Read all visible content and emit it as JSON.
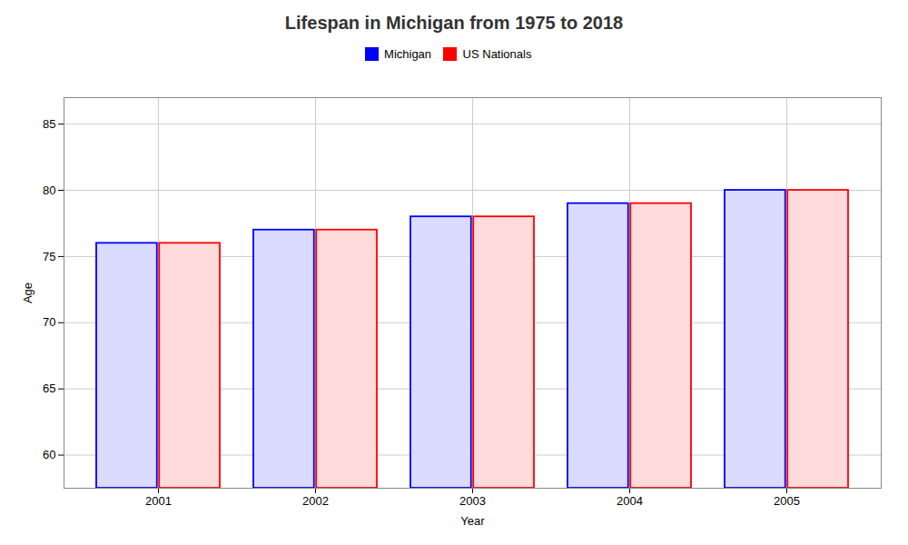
{
  "chart_data": {
    "type": "bar",
    "title": "Lifespan in Michigan from 1975 to 2018",
    "xlabel": "Year",
    "ylabel": "Age",
    "categories": [
      "2001",
      "2002",
      "2003",
      "2004",
      "2005"
    ],
    "series": [
      {
        "name": "Michigan",
        "color": "#0000ff",
        "values": [
          76.0,
          77.0,
          78.0,
          79.0,
          80.0
        ]
      },
      {
        "name": "US Nationals",
        "color": "#ff0000",
        "values": [
          76.0,
          77.0,
          78.0,
          79.0,
          80.0
        ]
      }
    ],
    "ylim": [
      57.5,
      87.0
    ],
    "yticks": [
      60,
      65,
      70,
      75,
      80,
      85
    ],
    "grid": true,
    "legend": "top"
  }
}
